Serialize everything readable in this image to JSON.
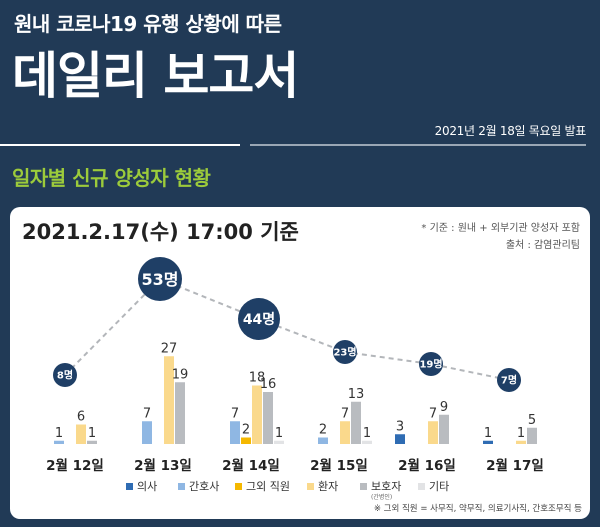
{
  "header": {
    "subtitle": "원내 코로나19 유행 상황에 따른",
    "title": "데일리 보고서",
    "date": "2021년 2월 18일 목요일 발표"
  },
  "section_title": "일자별 신규 양성자 현황",
  "chart_data": {
    "type": "bar",
    "title": "2021.2.17(수) 17:00 기준",
    "notes": [
      "* 기준 : 원내 + 외부기관 양성자 포함",
      "출처 : 감염관리팀"
    ],
    "footnote": "※ 그외 직원 = 사무직, 약무직, 의료기사직, 간호조무직 등",
    "categories": [
      "2월 12일",
      "2월 13일",
      "2월 14일",
      "2월 15일",
      "2월 16일",
      "2월 17일"
    ],
    "series": [
      {
        "name": "의사",
        "color": "#2f6cb3",
        "values": [
          0,
          0,
          0,
          0,
          3,
          1
        ]
      },
      {
        "name": "간호사",
        "color": "#8fb7e3",
        "values": [
          1,
          7,
          7,
          2,
          0,
          0
        ]
      },
      {
        "name": "그외 직원",
        "color": "#f5b800",
        "values": [
          0,
          0,
          2,
          0,
          0,
          0
        ]
      },
      {
        "name": "환자",
        "color": "#fad98c",
        "values": [
          6,
          27,
          18,
          7,
          7,
          1
        ]
      },
      {
        "name": "보호자",
        "sub": "(간병인)",
        "color": "#b9bcc0",
        "values": [
          1,
          19,
          16,
          13,
          9,
          5
        ]
      },
      {
        "name": "기타",
        "color": "#e2e3e5",
        "values": [
          0,
          0,
          1,
          1,
          0,
          0
        ]
      }
    ],
    "totals": [
      "8명",
      "53명",
      "44명",
      "23명",
      "19명",
      "7명"
    ],
    "total_values": [
      8,
      53,
      44,
      23,
      19,
      7
    ]
  }
}
